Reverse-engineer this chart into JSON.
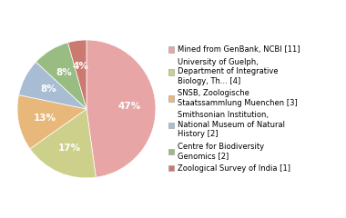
{
  "sizes": [
    11,
    4,
    3,
    2,
    2,
    1
  ],
  "colors": [
    "#e8a5a5",
    "#cdd08a",
    "#e8b87a",
    "#a8bdd4",
    "#98bc82",
    "#cc7a70"
  ],
  "pct_labels": [
    "47%",
    "17%",
    "13%",
    "8%",
    "8%",
    "4%"
  ],
  "legend_labels": [
    "Mined from GenBank, NCBI [11]",
    "University of Guelph,\nDepartment of Integrative\nBiology, Th... [4]",
    "SNSB, Zoologische\nStaatssammlung Muenchen [3]",
    "Smithsonian Institution,\nNational Museum of Natural\nHistory [2]",
    "Centre for Biodiversity\nGenomics [2]",
    "Zoological Survey of India [1]"
  ],
  "background_color": "#ffffff",
  "pct_fontsize": 7.5,
  "legend_fontsize": 6.0
}
